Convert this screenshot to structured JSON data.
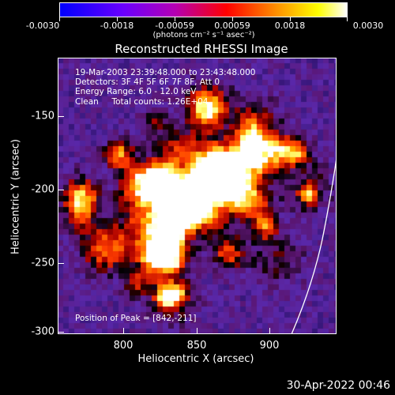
{
  "colorbar": {
    "ticks": [
      "-0.0030",
      "-0.0018",
      "-0.00059",
      "0.00059",
      "0.0018",
      "0.0030"
    ],
    "units": "(photons cm⁻² s⁻¹ asec⁻²)"
  },
  "chart_data": {
    "type": "heatmap",
    "title": "Reconstructed RHESSI Image",
    "xlabel": "Heliocentric X (arcsec)",
    "ylabel": "Heliocentric Y (arcsec)",
    "xlim": [
      760,
      945
    ],
    "ylim": [
      -302,
      -118
    ],
    "xticks": [
      "800",
      "850",
      "900"
    ],
    "yticks": [
      "-150",
      "-200",
      "-250",
      "-300"
    ],
    "zlim": [
      -0.003,
      0.003
    ],
    "peak": [
      842,
      -211
    ],
    "annotations": {
      "time_range": "19-Mar-2003 23:39:48.000 to 23:43:48.000",
      "detectors": "Detectors: 3F 4F 5F 6F 7F 8F, Att 0",
      "energy": "Energy Range: 6.0 - 12.0 keV",
      "clean": "Clean     Total counts: 1.26E+04",
      "peak_text": "Position of Peak = [842,-211]"
    }
  },
  "timestamp": "30-Apr-2022 00:46"
}
